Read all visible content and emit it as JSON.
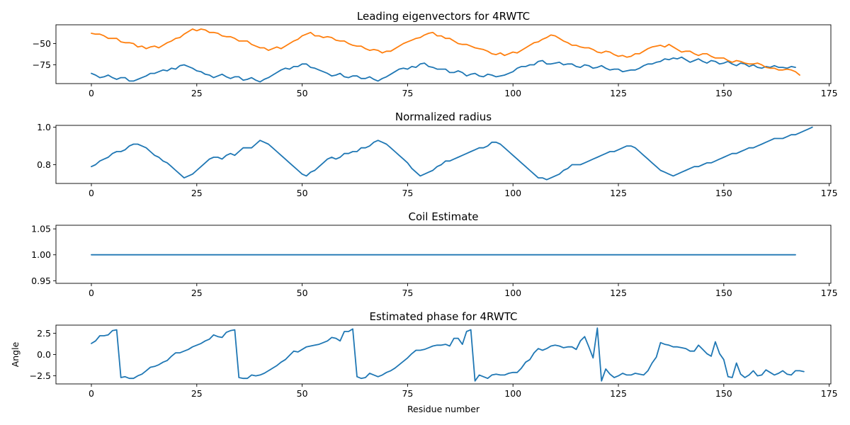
{
  "colors": {
    "series1": "#1f77b4",
    "series2": "#ff7f0e"
  },
  "chart_data": [
    {
      "type": "line",
      "title": "Leading eigenvectors for 4RWTC",
      "xlabel": "",
      "ylabel": "",
      "xlim": [
        -8.4,
        175.4
      ],
      "ylim": [
        -97,
        -28
      ],
      "xticks": [
        0,
        25,
        50,
        75,
        100,
        125,
        150,
        175
      ],
      "yticks": [
        -50,
        -75
      ],
      "grid": false,
      "series": [
        {
          "color": "#1f77b4",
          "x_start": 0,
          "x_step": 1,
          "values": [
            -85,
            -87,
            -90,
            -89,
            -87,
            -90,
            -92,
            -90,
            -90,
            -94,
            -94,
            -92,
            -90,
            -88,
            -85,
            -85,
            -83,
            -81,
            -82,
            -79,
            -80,
            -76,
            -75,
            -77,
            -79,
            -82,
            -83,
            -86,
            -87,
            -90,
            -88,
            -86,
            -89,
            -91,
            -89,
            -89,
            -93,
            -92,
            -90,
            -93,
            -95,
            -92,
            -90,
            -87,
            -84,
            -81,
            -79,
            -80,
            -77,
            -77,
            -74,
            -74,
            -78,
            -79,
            -81,
            -83,
            -85,
            -88,
            -87,
            -85,
            -89,
            -90,
            -88,
            -88,
            -91,
            -91,
            -89,
            -92,
            -94,
            -91,
            -89,
            -86,
            -83,
            -80,
            -79,
            -80,
            -77,
            -78,
            -74,
            -73,
            -77,
            -78,
            -80,
            -80,
            -80,
            -84,
            -84,
            -82,
            -84,
            -88,
            -86,
            -85,
            -88,
            -89,
            -86,
            -87,
            -89,
            -88,
            -87,
            -85,
            -83,
            -79,
            -77,
            -77,
            -75,
            -75,
            -71,
            -70,
            -74,
            -74,
            -73,
            -72,
            -75,
            -74,
            -74,
            -77,
            -78,
            -75,
            -76,
            -79,
            -78,
            -76,
            -79,
            -81,
            -80,
            -80,
            -83,
            -82,
            -81,
            -81,
            -79,
            -76,
            -74,
            -74,
            -72,
            -71,
            -68,
            -69,
            -67,
            -68,
            -66,
            -69,
            -72,
            -70,
            -68,
            -71,
            -73,
            -70,
            -71,
            -74,
            -73,
            -71,
            -74,
            -76,
            -73,
            -74,
            -77,
            -75,
            -78,
            -79,
            -77,
            -78,
            -76,
            -78,
            -78,
            -79,
            -77,
            -78
          ]
        },
        {
          "color": "#ff7f0e",
          "x_start": 0,
          "x_step": 1,
          "values": [
            -38,
            -39,
            -39,
            -41,
            -44,
            -44,
            -44,
            -48,
            -49,
            -49,
            -50,
            -54,
            -53,
            -56,
            -54,
            -53,
            -55,
            -52,
            -49,
            -47,
            -44,
            -43,
            -39,
            -36,
            -33,
            -35,
            -33,
            -34,
            -37,
            -37,
            -38,
            -41,
            -42,
            -42,
            -44,
            -47,
            -47,
            -47,
            -51,
            -53,
            -55,
            -55,
            -58,
            -56,
            -54,
            -56,
            -53,
            -50,
            -47,
            -45,
            -41,
            -39,
            -37,
            -41,
            -41,
            -43,
            -42,
            -43,
            -46,
            -47,
            -47,
            -50,
            -52,
            -53,
            -53,
            -56,
            -58,
            -57,
            -58,
            -61,
            -59,
            -59,
            -56,
            -53,
            -50,
            -48,
            -46,
            -44,
            -43,
            -40,
            -38,
            -37,
            -41,
            -41,
            -44,
            -44,
            -47,
            -50,
            -51,
            -51,
            -53,
            -55,
            -56,
            -57,
            -59,
            -62,
            -63,
            -61,
            -64,
            -62,
            -60,
            -61,
            -58,
            -55,
            -52,
            -49,
            -48,
            -45,
            -43,
            -40,
            -41,
            -44,
            -47,
            -49,
            -52,
            -52,
            -54,
            -55,
            -55,
            -57,
            -60,
            -61,
            -59,
            -60,
            -63,
            -65,
            -64,
            -66,
            -65,
            -62,
            -62,
            -59,
            -56,
            -54,
            -53,
            -52,
            -54,
            -51,
            -54,
            -57,
            -60,
            -59,
            -59,
            -62,
            -64,
            -62,
            -62,
            -65,
            -67,
            -67,
            -67,
            -70,
            -72,
            -70,
            -71,
            -73,
            -74,
            -74,
            -73,
            -75,
            -78,
            -79,
            -79,
            -81,
            -81,
            -80,
            -81,
            -83,
            -87
          ]
        }
      ]
    },
    {
      "type": "line",
      "title": "Normalized radius",
      "xlabel": "",
      "ylabel": "",
      "xlim": [
        -8.4,
        175.4
      ],
      "ylim": [
        0.7,
        1.01
      ],
      "xticks": [
        0,
        25,
        50,
        75,
        100,
        125,
        150,
        175
      ],
      "yticks": [
        0.8,
        1.0
      ],
      "ytick_labels": [
        "0.8",
        "1.0"
      ],
      "grid": false,
      "series": [
        {
          "color": "#1f77b4",
          "x_start": 0,
          "x_step": 1,
          "values": [
            0.79,
            0.8,
            0.82,
            0.83,
            0.84,
            0.86,
            0.87,
            0.87,
            0.88,
            0.9,
            0.91,
            0.91,
            0.9,
            0.89,
            0.87,
            0.85,
            0.84,
            0.82,
            0.81,
            0.79,
            0.77,
            0.75,
            0.73,
            0.74,
            0.75,
            0.77,
            0.79,
            0.81,
            0.83,
            0.84,
            0.84,
            0.83,
            0.85,
            0.86,
            0.85,
            0.87,
            0.89,
            0.89,
            0.89,
            0.91,
            0.93,
            0.92,
            0.91,
            0.89,
            0.87,
            0.85,
            0.83,
            0.81,
            0.79,
            0.77,
            0.75,
            0.74,
            0.76,
            0.77,
            0.79,
            0.81,
            0.83,
            0.84,
            0.83,
            0.84,
            0.86,
            0.86,
            0.87,
            0.87,
            0.89,
            0.89,
            0.9,
            0.92,
            0.93,
            0.92,
            0.91,
            0.89,
            0.87,
            0.85,
            0.83,
            0.81,
            0.78,
            0.76,
            0.74,
            0.75,
            0.76,
            0.77,
            0.79,
            0.8,
            0.82,
            0.82,
            0.83,
            0.84,
            0.85,
            0.86,
            0.87,
            0.88,
            0.89,
            0.89,
            0.9,
            0.92,
            0.92,
            0.91,
            0.89,
            0.87,
            0.85,
            0.83,
            0.81,
            0.79,
            0.77,
            0.75,
            0.73,
            0.73,
            0.72,
            0.73,
            0.74,
            0.75,
            0.77,
            0.78,
            0.8,
            0.8,
            0.8,
            0.81,
            0.82,
            0.83,
            0.84,
            0.85,
            0.86,
            0.87,
            0.87,
            0.88,
            0.89,
            0.9,
            0.9,
            0.89,
            0.87,
            0.85,
            0.83,
            0.81,
            0.79,
            0.77,
            0.76,
            0.75,
            0.74,
            0.75,
            0.76,
            0.77,
            0.78,
            0.79,
            0.79,
            0.8,
            0.81,
            0.81,
            0.82,
            0.83,
            0.84,
            0.85,
            0.86,
            0.86,
            0.87,
            0.88,
            0.89,
            0.89,
            0.9,
            0.91,
            0.92,
            0.93,
            0.94,
            0.94,
            0.94,
            0.95,
            0.96,
            0.96,
            0.97,
            0.98,
            0.99,
            1.0
          ]
        }
      ]
    },
    {
      "type": "line",
      "title": "Coil Estimate",
      "xlabel": "",
      "ylabel": "",
      "xlim": [
        -8.4,
        175.4
      ],
      "ylim": [
        0.945,
        1.057
      ],
      "xticks": [
        0,
        25,
        50,
        75,
        100,
        125,
        150,
        175
      ],
      "yticks": [
        0.95,
        1.0,
        1.05
      ],
      "ytick_labels": [
        "0.95",
        "1.00",
        "1.05"
      ],
      "grid": false,
      "series": [
        {
          "color": "#1f77b4",
          "x": [
            0,
            167
          ],
          "values": [
            1.0,
            1.0
          ]
        }
      ]
    },
    {
      "type": "line",
      "title": "Estimated phase for 4RWTC",
      "xlabel": "Residue number",
      "ylabel": "Angle",
      "xlim": [
        -8.4,
        175.4
      ],
      "ylim": [
        -3.45,
        3.45
      ],
      "xticks": [
        0,
        25,
        50,
        75,
        100,
        125,
        150,
        175
      ],
      "yticks": [
        2.5,
        0.0,
        -2.5
      ],
      "ytick_labels": [
        "2.5",
        "0.0",
        "−2.5"
      ],
      "grid": false,
      "series": [
        {
          "color": "#1f77b4",
          "x_start": 0,
          "x_step": 1,
          "values": [
            1.3,
            1.6,
            2.2,
            2.2,
            2.3,
            2.8,
            2.9,
            -2.7,
            -2.6,
            -2.8,
            -2.8,
            -2.5,
            -2.3,
            -1.9,
            -1.5,
            -1.4,
            -1.2,
            -0.9,
            -0.7,
            -0.2,
            0.2,
            0.2,
            0.4,
            0.6,
            0.9,
            1.1,
            1.3,
            1.6,
            1.8,
            2.3,
            2.1,
            2.0,
            2.6,
            2.8,
            2.9,
            -2.7,
            -2.8,
            -2.8,
            -2.4,
            -2.5,
            -2.4,
            -2.2,
            -1.9,
            -1.6,
            -1.3,
            -0.9,
            -0.6,
            -0.1,
            0.4,
            0.3,
            0.6,
            0.9,
            1.0,
            1.1,
            1.2,
            1.4,
            1.6,
            2.0,
            1.9,
            1.6,
            2.7,
            2.7,
            3.0,
            -2.6,
            -2.8,
            -2.7,
            -2.2,
            -2.4,
            -2.6,
            -2.4,
            -2.1,
            -1.9,
            -1.6,
            -1.2,
            -0.8,
            -0.4,
            0.1,
            0.5,
            0.5,
            0.6,
            0.8,
            1.0,
            1.1,
            1.1,
            1.2,
            1.0,
            1.9,
            1.9,
            1.2,
            2.7,
            2.9,
            -3.1,
            -2.4,
            -2.6,
            -2.8,
            -2.4,
            -2.3,
            -2.4,
            -2.4,
            -2.2,
            -2.1,
            -2.1,
            -1.6,
            -0.9,
            -0.6,
            0.2,
            0.7,
            0.5,
            0.7,
            1.0,
            1.1,
            1.0,
            0.8,
            0.9,
            0.9,
            0.6,
            1.6,
            2.1,
            0.9,
            -0.4,
            3.1,
            -3.1,
            -1.7,
            -2.3,
            -2.7,
            -2.5,
            -2.2,
            -2.4,
            -2.4,
            -2.2,
            -2.3,
            -2.4,
            -1.9,
            -1.0,
            -0.3,
            1.4,
            1.2,
            1.1,
            0.9,
            0.9,
            0.8,
            0.7,
            0.4,
            0.4,
            1.1,
            0.6,
            0.1,
            -0.2,
            1.5,
            0.1,
            -0.6,
            -2.6,
            -2.7,
            -1.0,
            -2.3,
            -2.7,
            -2.4,
            -1.9,
            -2.5,
            -2.4,
            -1.8,
            -2.1,
            -2.4,
            -2.2,
            -1.9,
            -2.3,
            -2.4,
            -1.9,
            -1.9,
            -2.0
          ]
        }
      ]
    }
  ]
}
